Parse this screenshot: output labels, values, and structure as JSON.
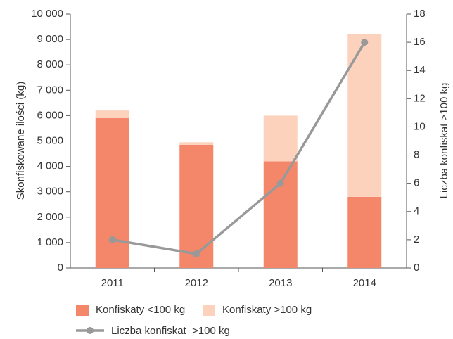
{
  "chart_data": {
    "type": "bar_line",
    "categories": [
      "2011",
      "2012",
      "2013",
      "2014"
    ],
    "ylabel": "Skonfiskowane ilości (kg)",
    "y2label": "Liczba konfiskat >100 kg",
    "series": [
      {
        "name": "Konfiskaty <100 kg",
        "color": "#f4866a",
        "values": [
          5900,
          4850,
          4200,
          2800
        ]
      },
      {
        "name": "Konfiskaty >100 kg",
        "color": "#fcd2bd",
        "values": [
          300,
          100,
          1800,
          6400
        ]
      },
      {
        "name": "Liczba konfiskat  >100 kg",
        "color": "#999999",
        "axis": "y2",
        "values": [
          2,
          1,
          6,
          16
        ]
      }
    ],
    "ylim": [
      0,
      10000
    ],
    "yticks": [
      0,
      {
        "value": 1000,
        "label": "1 000"
      },
      {
        "value": 2000,
        "label": "2 000"
      },
      {
        "value": 3000,
        "label": "3 000"
      },
      {
        "value": 4000,
        "label": "4 000"
      },
      {
        "value": 5000,
        "label": "5 000"
      },
      {
        "value": 6000,
        "label": "6 000"
      },
      {
        "value": 7000,
        "label": "7 000"
      },
      {
        "value": 8000,
        "label": "8 000"
      },
      {
        "value": 9000,
        "label": "9 000"
      },
      {
        "value": 10000,
        "label": "10 000"
      }
    ],
    "y2lim": [
      0,
      18
    ],
    "y2ticks": [
      0,
      2,
      4,
      6,
      8,
      10,
      12,
      14,
      16,
      18
    ]
  }
}
